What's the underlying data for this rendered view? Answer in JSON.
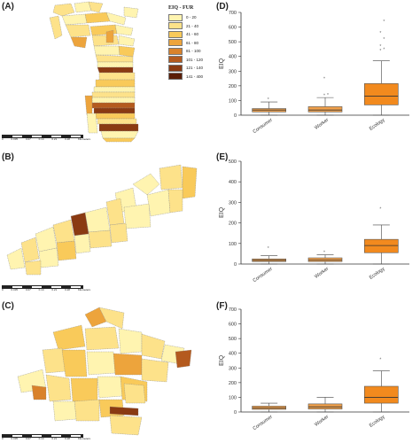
{
  "panels": {
    "a": "(A)",
    "b": "(B)",
    "c": "(C)",
    "d": "(D)",
    "e": "(E)",
    "f": "(F)"
  },
  "legend": {
    "title": "EIQ - FUR",
    "classes": [
      {
        "label": "0 - 20",
        "color": "#fff4b0"
      },
      {
        "label": "21 - 40",
        "color": "#fde28a"
      },
      {
        "label": "41 - 60",
        "color": "#f9ca5a"
      },
      {
        "label": "61 - 80",
        "color": "#eda43c"
      },
      {
        "label": "81 - 100",
        "color": "#d9822b"
      },
      {
        "label": "101 - 120",
        "color": "#b45a1e"
      },
      {
        "label": "121 - 140",
        "color": "#8a3a12"
      },
      {
        "label": "141 - 400",
        "color": "#5a1e08"
      }
    ]
  },
  "scales": {
    "a": [
      "0",
      "0.035",
      "0.07",
      "0.14",
      "0.21",
      "0.28",
      "Kilometers"
    ],
    "b": [
      "0",
      "0.035",
      "0.07",
      "0.14",
      "0.21",
      "0.28",
      "Kilometers"
    ],
    "c": [
      "0",
      "0.035",
      "0.07",
      "0.14",
      "0.21",
      "0.28",
      "Kilometers"
    ]
  },
  "chart_data": [
    {
      "type": "box",
      "ylabel": "EIQ",
      "ylim": [
        0,
        700
      ],
      "yticks": [
        0,
        100,
        200,
        300,
        400,
        500,
        600,
        700
      ],
      "categories": [
        "Consumer",
        "Worker",
        "Ecology"
      ],
      "boxes": [
        {
          "min": 0,
          "q1": 22,
          "median": 35,
          "q3": 45,
          "max": 90,
          "outliers": [
            108
          ],
          "color": "#f0a04b"
        },
        {
          "min": 0,
          "q1": 22,
          "median": 35,
          "q3": 58,
          "max": 120,
          "outliers": [
            135,
            138,
            250
          ],
          "color": "#f0a04b"
        },
        {
          "min": 0,
          "q1": 70,
          "median": 130,
          "q3": 215,
          "max": 370,
          "outliers": [
            440,
            450,
            470,
            520,
            560,
            640
          ],
          "color": "#f28a1e"
        }
      ]
    },
    {
      "type": "box",
      "ylabel": "EIQ",
      "ylim": [
        0,
        500
      ],
      "yticks": [
        0,
        100,
        200,
        300,
        400,
        500
      ],
      "categories": [
        "Consumer",
        "Worker",
        "Ecology"
      ],
      "boxes": [
        {
          "min": 0,
          "q1": 12,
          "median": 18,
          "q3": 25,
          "max": 40,
          "outliers": [
            78
          ],
          "color": "#f0a04b"
        },
        {
          "min": 0,
          "q1": 12,
          "median": 20,
          "q3": 30,
          "max": 45,
          "outliers": [
            58
          ],
          "color": "#f0a04b"
        },
        {
          "min": 0,
          "q1": 55,
          "median": 90,
          "q3": 120,
          "max": 190,
          "outliers": [
            270
          ],
          "color": "#f28a1e"
        }
      ]
    },
    {
      "type": "box",
      "ylabel": "EIQ",
      "ylim": [
        0,
        700
      ],
      "yticks": [
        0,
        100,
        200,
        300,
        400,
        500,
        600,
        700
      ],
      "categories": [
        "Consumer",
        "Worker",
        "Ecology"
      ],
      "boxes": [
        {
          "min": 0,
          "q1": 18,
          "median": 28,
          "q3": 40,
          "max": 60,
          "outliers": [],
          "color": "#f0a04b"
        },
        {
          "min": 0,
          "q1": 20,
          "median": 35,
          "q3": 55,
          "max": 100,
          "outliers": [],
          "color": "#f0a04b"
        },
        {
          "min": 0,
          "q1": 60,
          "median": 100,
          "q3": 175,
          "max": 280,
          "outliers": [
            360
          ],
          "color": "#f28a1e"
        }
      ]
    }
  ]
}
